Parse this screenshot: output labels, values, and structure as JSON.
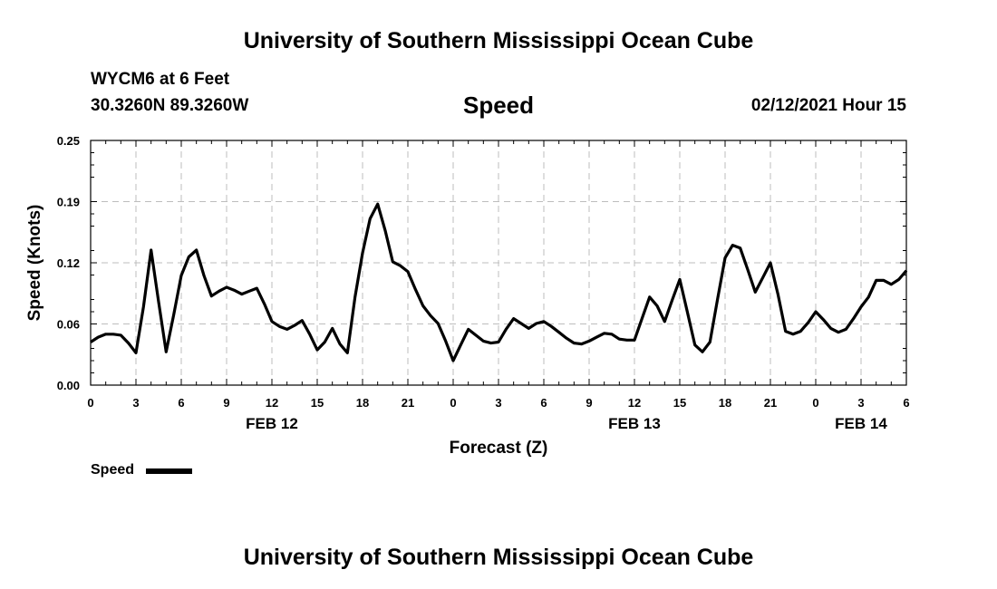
{
  "header": {
    "title": "University of Southern Mississippi Ocean Cube",
    "station": "WYCM6 at 6 Feet",
    "location": "30.3260N 89.3260W",
    "variable": "Speed",
    "timestamp": "02/12/2021 Hour 15"
  },
  "footer": {
    "title": "University of Southern Mississippi Ocean Cube"
  },
  "legend": {
    "label": "Speed"
  },
  "chart_data": {
    "type": "line",
    "xlabel": "Forecast (Z)",
    "ylabel": "Speed (Knots)",
    "ylim": [
      0,
      0.25
    ],
    "yticks": [
      "0.00",
      "0.06",
      "0.12",
      "0.19",
      "0.25"
    ],
    "ytick_values": [
      0,
      0.0625,
      0.125,
      0.1875,
      0.25
    ],
    "xlim": [
      0,
      54
    ],
    "xticks": [
      {
        "x": 0,
        "label": "0"
      },
      {
        "x": 3,
        "label": "3"
      },
      {
        "x": 6,
        "label": "6"
      },
      {
        "x": 9,
        "label": "9"
      },
      {
        "x": 12,
        "label": "12"
      },
      {
        "x": 15,
        "label": "15"
      },
      {
        "x": 18,
        "label": "18"
      },
      {
        "x": 21,
        "label": "21"
      },
      {
        "x": 24,
        "label": "0"
      },
      {
        "x": 27,
        "label": "3"
      },
      {
        "x": 30,
        "label": "6"
      },
      {
        "x": 33,
        "label": "9"
      },
      {
        "x": 36,
        "label": "12"
      },
      {
        "x": 39,
        "label": "15"
      },
      {
        "x": 42,
        "label": "18"
      },
      {
        "x": 45,
        "label": "21"
      },
      {
        "x": 48,
        "label": "0"
      },
      {
        "x": 51,
        "label": "3"
      },
      {
        "x": 54,
        "label": "6"
      }
    ],
    "date_labels": [
      {
        "x": 12,
        "label": "FEB 12"
      },
      {
        "x": 36,
        "label": "FEB 13"
      },
      {
        "x": 51,
        "label": "FEB 14"
      }
    ],
    "grid": true,
    "legend_position": "bottom-left",
    "color": "#000000",
    "series": [
      {
        "name": "Speed",
        "x": [
          0,
          0.5,
          1,
          1.5,
          2,
          2.5,
          3,
          3.5,
          4,
          4.5,
          5,
          5.5,
          6,
          6.5,
          7,
          7.5,
          8,
          8.5,
          9,
          9.5,
          10,
          10.5,
          11,
          11.5,
          12,
          12.5,
          13,
          13.5,
          14,
          14.5,
          15,
          15.5,
          16,
          16.5,
          17,
          17.5,
          18,
          18.5,
          19,
          19.5,
          20,
          20.5,
          21,
          21.5,
          22,
          22.5,
          23,
          23.5,
          24,
          24.5,
          25,
          25.5,
          26,
          26.5,
          27,
          27.5,
          28,
          28.5,
          29,
          29.5,
          30,
          30.5,
          31,
          31.5,
          32,
          32.5,
          33,
          33.5,
          34,
          34.5,
          35,
          35.5,
          36,
          36.5,
          37,
          37.5,
          38,
          38.5,
          39,
          39.5,
          40,
          40.5,
          41,
          41.5,
          42,
          42.5,
          43,
          43.5,
          44,
          44.5,
          45,
          45.5,
          46,
          46.5,
          47,
          47.5,
          48,
          48.5,
          49,
          49.5,
          50,
          50.5,
          51,
          51.5,
          52,
          52.5,
          53,
          53.5,
          54
        ],
        "values": [
          0.044,
          0.049,
          0.052,
          0.052,
          0.051,
          0.043,
          0.033,
          0.08,
          0.138,
          0.085,
          0.034,
          0.072,
          0.112,
          0.131,
          0.138,
          0.112,
          0.091,
          0.096,
          0.1,
          0.097,
          0.093,
          0.096,
          0.099,
          0.083,
          0.065,
          0.06,
          0.057,
          0.061,
          0.066,
          0.052,
          0.036,
          0.044,
          0.058,
          0.042,
          0.033,
          0.09,
          0.135,
          0.17,
          0.185,
          0.158,
          0.126,
          0.122,
          0.116,
          0.098,
          0.081,
          0.071,
          0.063,
          0.045,
          0.025,
          0.041,
          0.057,
          0.051,
          0.045,
          0.043,
          0.044,
          0.057,
          0.068,
          0.063,
          0.058,
          0.063,
          0.065,
          0.06,
          0.054,
          0.048,
          0.043,
          0.042,
          0.045,
          0.049,
          0.053,
          0.052,
          0.047,
          0.046,
          0.046,
          0.068,
          0.09,
          0.081,
          0.065,
          0.087,
          0.108,
          0.075,
          0.041,
          0.034,
          0.044,
          0.088,
          0.13,
          0.143,
          0.14,
          0.118,
          0.095,
          0.11,
          0.125,
          0.093,
          0.055,
          0.052,
          0.055,
          0.064,
          0.075,
          0.067,
          0.058,
          0.054,
          0.057,
          0.068,
          0.08,
          0.09,
          0.107,
          0.107,
          0.103,
          0.108,
          0.117
        ]
      }
    ]
  }
}
